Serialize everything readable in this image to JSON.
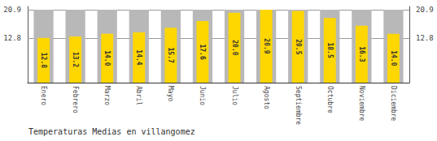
{
  "chart_data": {
    "type": "bar",
    "title": "Temperaturas Medias en villangomez",
    "categories": [
      "Enero",
      "Febrero",
      "Marzo",
      "Abril",
      "Mayo",
      "Junio",
      "Julio",
      "Agosto",
      "Septiembre",
      "Octubre",
      "Noviembre",
      "Diciembre"
    ],
    "series": [
      {
        "color": "#B8B8B8",
        "values": [
          20.9,
          20.9,
          20.9,
          20.9,
          20.9,
          20.9,
          20.9,
          20.9,
          20.9,
          20.9,
          20.9,
          20.9
        ]
      },
      {
        "color": "#FFD700",
        "values": [
          12.8,
          13.2,
          14.0,
          14.4,
          15.7,
          17.6,
          20.0,
          20.9,
          20.5,
          18.5,
          16.3,
          14.0
        ],
        "value_labels": [
          "12.8",
          "13.2",
          "14.0",
          "14.4",
          "15.7",
          "17.6",
          "20.0",
          "20.9",
          "20.5",
          "18.5",
          "16.3",
          "14.0"
        ],
        "data_labels": true
      }
    ],
    "ylim": [
      0,
      21.8
    ],
    "yticks": [
      12.8,
      20.9
    ],
    "y2lim": [
      0,
      21.8
    ],
    "y2ticks": [
      12.8,
      20.9
    ],
    "grid": true
  }
}
